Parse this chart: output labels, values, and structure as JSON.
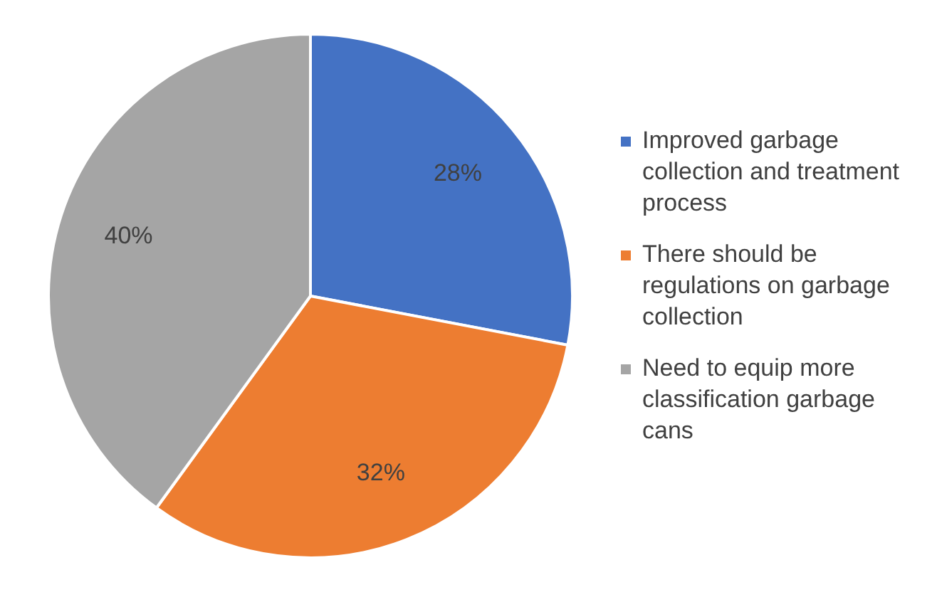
{
  "chart_data": {
    "type": "pie",
    "categories": [
      "Improved garbage collection and treatment process",
      "There should be regulations on garbage collection",
      "Need to equip more classification garbage cans"
    ],
    "values": [
      28,
      32,
      40
    ],
    "colors": [
      "#4472c4",
      "#ed7d31",
      "#a5a5a5"
    ],
    "value_labels": [
      "28%",
      "32%",
      "40%"
    ],
    "legend": "right"
  }
}
